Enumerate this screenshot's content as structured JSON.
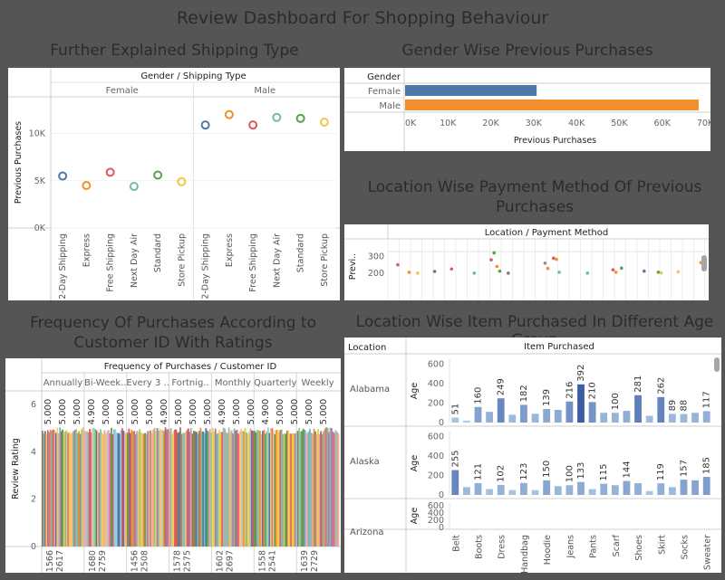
{
  "dashboard_title": "Review Dashboard For Shopping Behaviour",
  "panels": {
    "shipping": {
      "title": "Further Explained Shipping Type"
    },
    "gender": {
      "title": "Gender Wise Previous Purchases"
    },
    "location_payment": {
      "title": "Location Wise Payment Method Of Previous Purchases"
    },
    "frequency": {
      "title": "Frequency Of Purchases According to Customer ID With Ratings"
    },
    "items": {
      "title": "Location Wise Item Purchased In Different Age Group"
    }
  },
  "chart_data": [
    {
      "id": "shipping",
      "type": "scatter",
      "header": "Gender / Shipping Type",
      "groups": [
        "Female",
        "Male"
      ],
      "categories": [
        "2-Day Shipping",
        "Express",
        "Free Shipping",
        "Next Day Air",
        "Standard",
        "Store Pickup"
      ],
      "ylabel": "Previous Purchases",
      "yticks": [
        "0K",
        "5K",
        "10K"
      ],
      "ylim": [
        0,
        13500
      ],
      "series": [
        {
          "group": "Female",
          "values": [
            5500,
            4500,
            5900,
            4400,
            5600,
            4900
          ]
        },
        {
          "group": "Male",
          "values": [
            10900,
            12000,
            10900,
            11700,
            11600,
            11200
          ]
        }
      ],
      "colors": [
        "#4e79a7",
        "#f28e2b",
        "#e15759",
        "#76b7b2",
        "#59a14f",
        "#edc948"
      ]
    },
    {
      "id": "gender",
      "type": "bar",
      "orientation": "horizontal",
      "row_header": "Gender",
      "categories": [
        "Female",
        "Male"
      ],
      "values": [
        30700,
        68500
      ],
      "colors": [
        "#4e79a7",
        "#f28e2b"
      ],
      "xlabel": "Previous Purchases",
      "xticks": [
        "0K",
        "10K",
        "20K",
        "30K",
        "40K",
        "50K",
        "60K",
        "70K"
      ],
      "xlim": [
        0,
        70000
      ]
    },
    {
      "id": "location_payment",
      "type": "scatter",
      "header": "Location / Payment Method",
      "ylabel": "Previ..",
      "yticks": [
        "200",
        "300"
      ],
      "ylim": [
        150,
        330
      ],
      "points": [
        {
          "x": 3,
          "y": 250,
          "color": "#e15759"
        },
        {
          "x": 7,
          "y": 205,
          "color": "#f28e2b"
        },
        {
          "x": 10,
          "y": 200,
          "color": "#edc948"
        },
        {
          "x": 16,
          "y": 210,
          "color": "#4e79a7"
        },
        {
          "x": 22,
          "y": 225,
          "color": "#e15759"
        },
        {
          "x": 30,
          "y": 200,
          "color": "#76b7b2"
        },
        {
          "x": 36,
          "y": 280,
          "color": "#e15759"
        },
        {
          "x": 37,
          "y": 322,
          "color": "#59a14f"
        },
        {
          "x": 38,
          "y": 240,
          "color": "#f28e2b"
        },
        {
          "x": 39,
          "y": 212,
          "color": "#59a14f"
        },
        {
          "x": 42,
          "y": 200,
          "color": "#9c755f"
        },
        {
          "x": 55,
          "y": 260,
          "color": "#b07aa1"
        },
        {
          "x": 56,
          "y": 228,
          "color": "#f28e2b"
        },
        {
          "x": 58,
          "y": 290,
          "color": "#e15759"
        },
        {
          "x": 59,
          "y": 283,
          "color": "#f28e2b"
        },
        {
          "x": 60,
          "y": 205,
          "color": "#76b7b2"
        },
        {
          "x": 70,
          "y": 200,
          "color": "#76b7b2"
        },
        {
          "x": 79,
          "y": 220,
          "color": "#e15759"
        },
        {
          "x": 80,
          "y": 205,
          "color": "#f28e2b"
        },
        {
          "x": 82,
          "y": 230,
          "color": "#59a14f"
        },
        {
          "x": 90,
          "y": 212,
          "color": "#4e79a7"
        },
        {
          "x": 95,
          "y": 205,
          "color": "#59a14f"
        },
        {
          "x": 96,
          "y": 202,
          "color": "#edc948"
        },
        {
          "x": 102,
          "y": 208,
          "color": "#edc948"
        },
        {
          "x": 110,
          "y": 263,
          "color": "#f28e2b"
        }
      ]
    },
    {
      "id": "frequency",
      "type": "bar",
      "header": "Frequency of Purchases / Customer ID",
      "groups": [
        "Annually",
        "Bi-Week..",
        "Every 3 ..",
        "Fortnig..",
        "Monthly",
        "Quarterly",
        "Weekly"
      ],
      "ylabel": "Review Rating",
      "yticks": [
        "0",
        "2",
        "4",
        "6"
      ],
      "ylim": [
        0,
        6.2
      ],
      "data_labels": [
        "5.000",
        "5.000",
        "5.000",
        "4.900",
        "5.000",
        "5.000",
        "5.000",
        "5.000",
        "4.900",
        "5.000",
        "5.000",
        "5.000",
        "4.900",
        "5.000",
        "5.000",
        "4.900",
        "5.000",
        "5.000",
        "5.000",
        "5.000"
      ],
      "x_labels": [
        [
          "1566",
          "2617"
        ],
        [
          "1680",
          "2759"
        ],
        [
          "1456",
          "2508"
        ],
        [
          "1578",
          "2575"
        ],
        [
          "1602",
          "2697"
        ],
        [
          "1558",
          "2541"
        ],
        [
          "1639",
          "2729"
        ]
      ]
    },
    {
      "id": "items",
      "type": "bar",
      "column_header": "Item Purchased",
      "row_header": "Location",
      "ylabel": "Age",
      "yticks": [
        "0",
        "200",
        "400",
        "600"
      ],
      "ylim": [
        0,
        650
      ],
      "categories_labeled": [
        "Belt",
        "Boots",
        "Dress",
        "Handbag",
        "Hoodie",
        "Jeans",
        "Pants",
        "Scarf",
        "Shoes",
        "Skirt",
        "Socks",
        "Sweater"
      ],
      "rows": [
        {
          "location": "Alabama",
          "values": [
            51,
            20,
            160,
            110,
            249,
            80,
            182,
            90,
            139,
            130,
            216,
            392,
            210,
            100,
            100,
            120,
            281,
            70,
            262,
            89,
            88,
            100,
            117
          ],
          "labels": [
            "51",
            "",
            "160",
            "",
            "249",
            "",
            "182",
            "",
            "139",
            "",
            "216",
            "392",
            "210",
            "",
            "100",
            "",
            "281",
            "",
            "262",
            "89",
            "88",
            "",
            "117"
          ]
        },
        {
          "location": "Alaska",
          "values": [
            255,
            80,
            121,
            60,
            102,
            50,
            123,
            50,
            150,
            90,
            100,
            133,
            60,
            115,
            100,
            144,
            120,
            40,
            119,
            80,
            157,
            150,
            185
          ],
          "labels": [
            "255",
            "",
            "121",
            "",
            "102",
            "",
            "123",
            "",
            "150",
            "",
            "100",
            "133",
            "",
            "115",
            "",
            "144",
            "",
            "",
            "119",
            "",
            "157",
            "",
            "185"
          ]
        },
        {
          "location": "Arizona",
          "values": [],
          "labels": []
        }
      ]
    }
  ]
}
